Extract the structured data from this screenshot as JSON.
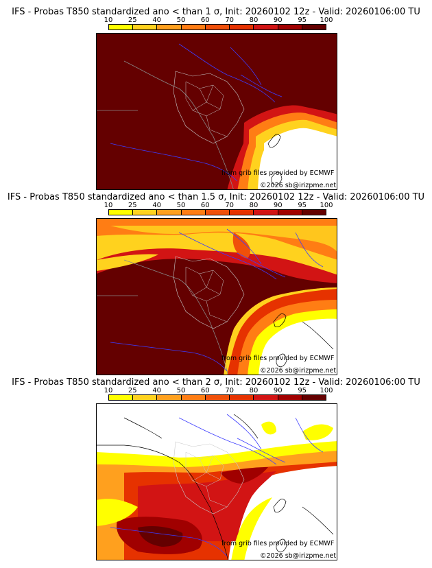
{
  "colorbar": {
    "levels": [
      "10",
      "25",
      "40",
      "50",
      "60",
      "70",
      "80",
      "90",
      "95",
      "100"
    ],
    "colors": [
      "#ffff00",
      "#ffd21e",
      "#ffa01e",
      "#ff7d14",
      "#f0500a",
      "#e63200",
      "#d21414",
      "#a00000",
      "#640000"
    ]
  },
  "panels": [
    {
      "title": "IFS - Probas T850  standardized ano < than 1 σ, Init: 20260102 12z - Valid: 20260106:00 TU",
      "credit_source": "from grib files provided by ECMWF",
      "credit_copyright": "©2026 sb@irizpme.net"
    },
    {
      "title": "IFS - Probas T850  standardized ano < than 1.5 σ, Init: 20260102 12z - Valid: 20260106:00 TU",
      "credit_source": "from grib files provided by ECMWF",
      "credit_copyright": "©2026 sb@irizpme.net"
    },
    {
      "title": "IFS - Probas T850  standardized ano < than 2 σ, Init: 20260102 12z - Valid: 20260106:00 TU",
      "credit_source": "from grib files provided by ECMWF",
      "credit_copyright": "©2026 sb@irizpme.net"
    }
  ]
}
